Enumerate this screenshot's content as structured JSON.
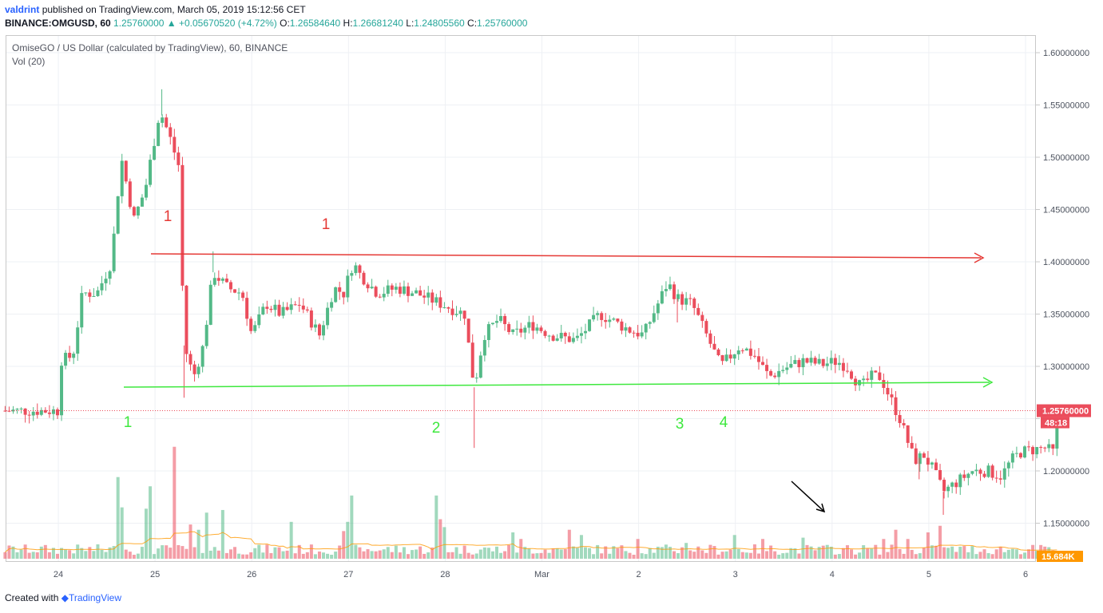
{
  "header": {
    "user": "valdrint",
    "published": "published on TradingView.com, March 05, 2019 15:12:56 CET",
    "symbol_line": "BINANCE:OMGUSD, 60",
    "last": "1.25760000",
    "change": "▲ +0.05670520 (+4.72%)",
    "o_label": "O:",
    "o": "1.26584640",
    "h_label": "H:",
    "h": "1.26681240",
    "l_label": "L:",
    "l": "1.24805560",
    "c_label": "C:",
    "c": "1.25760000"
  },
  "legend": {
    "title": "OmiseGO / US Dollar (calculated by TradingView), 60, BINANCE",
    "volume": "Vol (20)"
  },
  "footer": {
    "created": "Created with",
    "brand": "TradingView"
  },
  "colors": {
    "up": "#53b987",
    "down": "#eb4d5c",
    "resistance": "#e53935",
    "support": "#3ee83e",
    "arrow": "#000000"
  },
  "chart_data": {
    "type": "candlestick",
    "symbol": "BINANCE:OMGUSD",
    "interval": "60",
    "y_ticks": [
      "1.60000000",
      "1.55000000",
      "1.50000000",
      "1.45000000",
      "1.40000000",
      "1.35000000",
      "1.30000000",
      "1.20000000",
      "1.15000000"
    ],
    "ylim": [
      1.13,
      1.62
    ],
    "x_ticks": [
      "24",
      "25",
      "26",
      "27",
      "28",
      "Mar",
      "2",
      "3",
      "4",
      "5",
      "6"
    ],
    "current_price_label": "1.25760000",
    "countdown_label": "48:18",
    "volume_label": "15.684K",
    "price_path": [
      [
        0,
        1.305
      ],
      [
        0.15,
        1.31
      ],
      [
        0.25,
        1.37
      ],
      [
        0.4,
        1.37
      ],
      [
        0.55,
        1.4
      ],
      [
        0.65,
        1.5
      ],
      [
        0.78,
        1.44
      ],
      [
        0.9,
        1.47
      ],
      [
        1.05,
        1.545
      ],
      [
        1.15,
        1.52
      ],
      [
        1.25,
        1.49
      ],
      [
        1.3,
        1.32
      ],
      [
        1.4,
        1.29
      ],
      [
        1.5,
        1.32
      ],
      [
        1.6,
        1.39
      ],
      [
        1.75,
        1.375
      ],
      [
        1.9,
        1.37
      ],
      [
        2.0,
        1.33
      ],
      [
        2.15,
        1.36
      ],
      [
        2.3,
        1.35
      ],
      [
        2.5,
        1.36
      ],
      [
        2.7,
        1.33
      ],
      [
        2.85,
        1.375
      ],
      [
        2.95,
        1.37
      ],
      [
        3.05,
        1.4
      ],
      [
        3.1,
        1.39
      ],
      [
        3.3,
        1.37
      ],
      [
        3.5,
        1.375
      ],
      [
        3.7,
        1.37
      ],
      [
        3.95,
        1.36
      ],
      [
        4.2,
        1.35
      ],
      [
        4.3,
        1.28
      ],
      [
        4.4,
        1.33
      ],
      [
        4.55,
        1.345
      ],
      [
        4.7,
        1.33
      ],
      [
        4.9,
        1.34
      ],
      [
        5.1,
        1.33
      ],
      [
        5.35,
        1.325
      ],
      [
        5.6,
        1.35
      ],
      [
        5.8,
        1.34
      ],
      [
        5.9,
        1.335
      ],
      [
        6.05,
        1.33
      ],
      [
        6.2,
        1.36
      ],
      [
        6.3,
        1.38
      ],
      [
        6.4,
        1.365
      ],
      [
        6.55,
        1.36
      ],
      [
        6.7,
        1.33
      ],
      [
        6.85,
        1.3
      ],
      [
        7.05,
        1.32
      ],
      [
        7.2,
        1.31
      ],
      [
        7.35,
        1.29
      ],
      [
        7.5,
        1.298
      ],
      [
        7.7,
        1.305
      ],
      [
        7.9,
        1.302
      ],
      [
        8.05,
        1.305
      ],
      [
        8.15,
        1.3
      ],
      [
        8.3,
        1.28
      ],
      [
        8.4,
        1.29
      ],
      [
        8.5,
        1.29
      ],
      [
        8.6,
        1.27
      ],
      [
        8.7,
        1.25
      ],
      [
        8.85,
        1.21
      ],
      [
        8.95,
        1.215
      ],
      [
        9.05,
        1.2
      ],
      [
        9.15,
        1.18
      ],
      [
        9.3,
        1.19
      ],
      [
        9.45,
        1.2
      ],
      [
        9.6,
        1.2
      ],
      [
        9.75,
        1.195
      ],
      [
        9.85,
        1.21
      ],
      [
        9.95,
        1.218
      ],
      [
        10.05,
        1.22
      ],
      [
        10.2,
        1.222
      ],
      [
        10.3,
        1.217
      ],
      [
        10.35,
        1.2576
      ]
    ],
    "volume_spikes": [
      [
        0.6,
        0.62
      ],
      [
        0.65,
        0.39
      ],
      [
        0.9,
        0.38
      ],
      [
        0.95,
        0.55
      ],
      [
        1.2,
        0.85
      ],
      [
        1.35,
        0.26
      ],
      [
        1.45,
        0.22
      ],
      [
        1.55,
        0.35
      ],
      [
        1.7,
        0.37
      ],
      [
        2.4,
        0.28
      ],
      [
        2.95,
        0.21
      ],
      [
        3.0,
        0.28
      ],
      [
        3.05,
        0.48
      ],
      [
        3.9,
        0.48
      ],
      [
        3.95,
        0.3
      ],
      [
        4.0,
        0.24
      ],
      [
        4.7,
        0.2
      ],
      [
        4.8,
        0.15
      ],
      [
        5.3,
        0.22
      ],
      [
        5.4,
        0.18
      ],
      [
        6.0,
        0.15
      ],
      [
        6.5,
        0.12
      ],
      [
        7.0,
        0.18
      ],
      [
        7.3,
        0.15
      ],
      [
        7.7,
        0.16
      ],
      [
        8.55,
        0.15
      ],
      [
        8.65,
        0.22
      ],
      [
        8.8,
        0.15
      ],
      [
        9.1,
        0.25
      ],
      [
        9.0,
        0.2
      ]
    ]
  },
  "annotations": {
    "resistance_labels": [
      "1",
      "1"
    ],
    "support_labels": [
      "1",
      "2",
      "3",
      "4"
    ]
  }
}
